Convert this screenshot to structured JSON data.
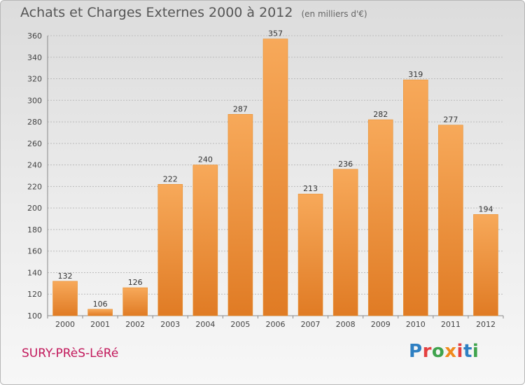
{
  "header": {
    "title": "Achats et Charges Externes 2000 à 2012",
    "subtitle": "(en milliers d'€)"
  },
  "footer": {
    "commune": "SURY-PRèS-LéRé",
    "logo_text": "Proxiti"
  },
  "colors": {
    "bar_top": "#f7a95a",
    "bar_bottom": "#e07b24",
    "grid": "#bbbbbb",
    "commune": "#c2185b",
    "logo": [
      "#2e7fc2",
      "#e43f3f",
      "#3fa34d",
      "#f08a1c",
      "#e43f3f",
      "#2e7fc2",
      "#3fa34d"
    ]
  },
  "chart_data": {
    "type": "bar",
    "title": "Achats et Charges Externes 2000 à 2012",
    "subtitle": "(en milliers d'€)",
    "categories": [
      "2000",
      "2001",
      "2002",
      "2003",
      "2004",
      "2005",
      "2006",
      "2007",
      "2008",
      "2009",
      "2010",
      "2011",
      "2012"
    ],
    "values": [
      132,
      106,
      126,
      222,
      240,
      287,
      357,
      213,
      236,
      282,
      319,
      277,
      194
    ],
    "ylim": [
      100,
      360
    ],
    "yticks": [
      100,
      120,
      140,
      160,
      180,
      200,
      220,
      240,
      260,
      280,
      300,
      320,
      340,
      360
    ],
    "grid": true,
    "xlabel": "",
    "ylabel": ""
  }
}
